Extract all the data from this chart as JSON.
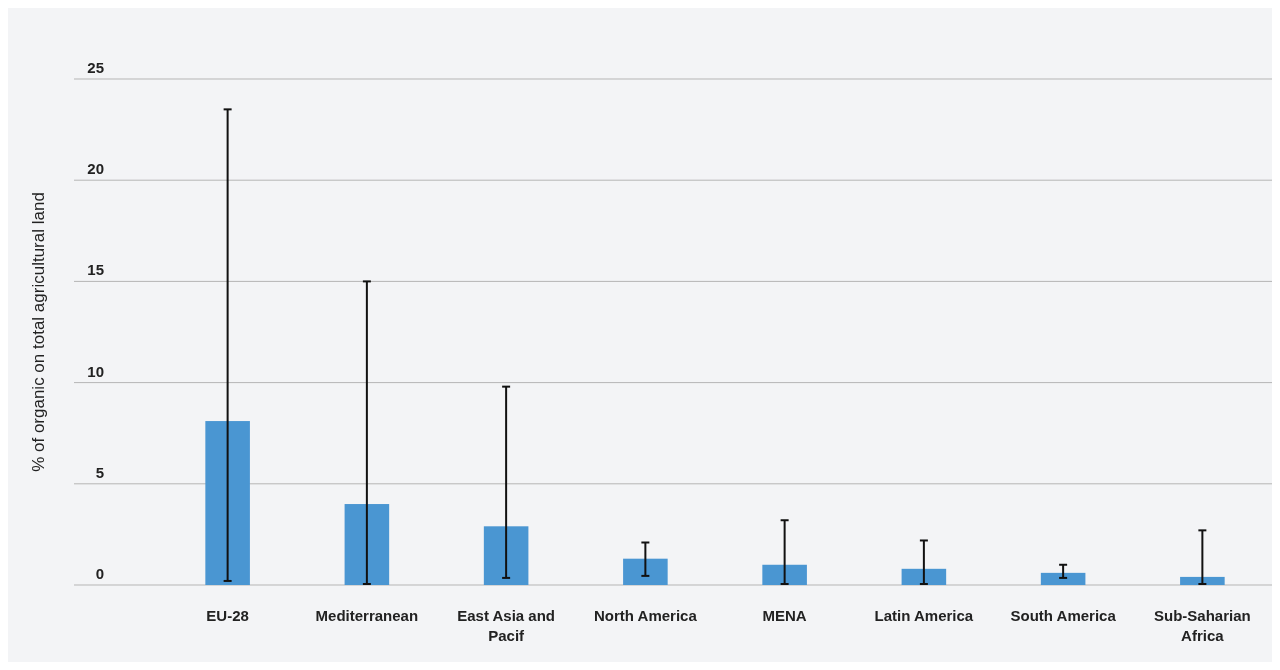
{
  "chart_data": {
    "type": "bar",
    "ylabel": "% of organic on total agricultural land",
    "categories": [
      "EU-28",
      "Mediterranean",
      "East Asia and Pacif",
      "North America",
      "MENA",
      "Latin America",
      "South America",
      "Sub-Saharian Africa"
    ],
    "values": [
      8.1,
      4.0,
      2.9,
      1.3,
      1.0,
      0.8,
      0.6,
      0.4
    ],
    "errors": [
      [
        0.2,
        23.5
      ],
      [
        0.05,
        15.0
      ],
      [
        0.35,
        9.8
      ],
      [
        0.45,
        2.1
      ],
      [
        0.05,
        3.2
      ],
      [
        0.05,
        2.2
      ],
      [
        0.35,
        1.0
      ],
      [
        0.05,
        2.7
      ]
    ],
    "color": "#4a96d2",
    "ylim": [
      0,
      25
    ],
    "yticks": [
      0,
      5,
      10,
      15,
      20,
      25
    ],
    "grid": "y"
  }
}
